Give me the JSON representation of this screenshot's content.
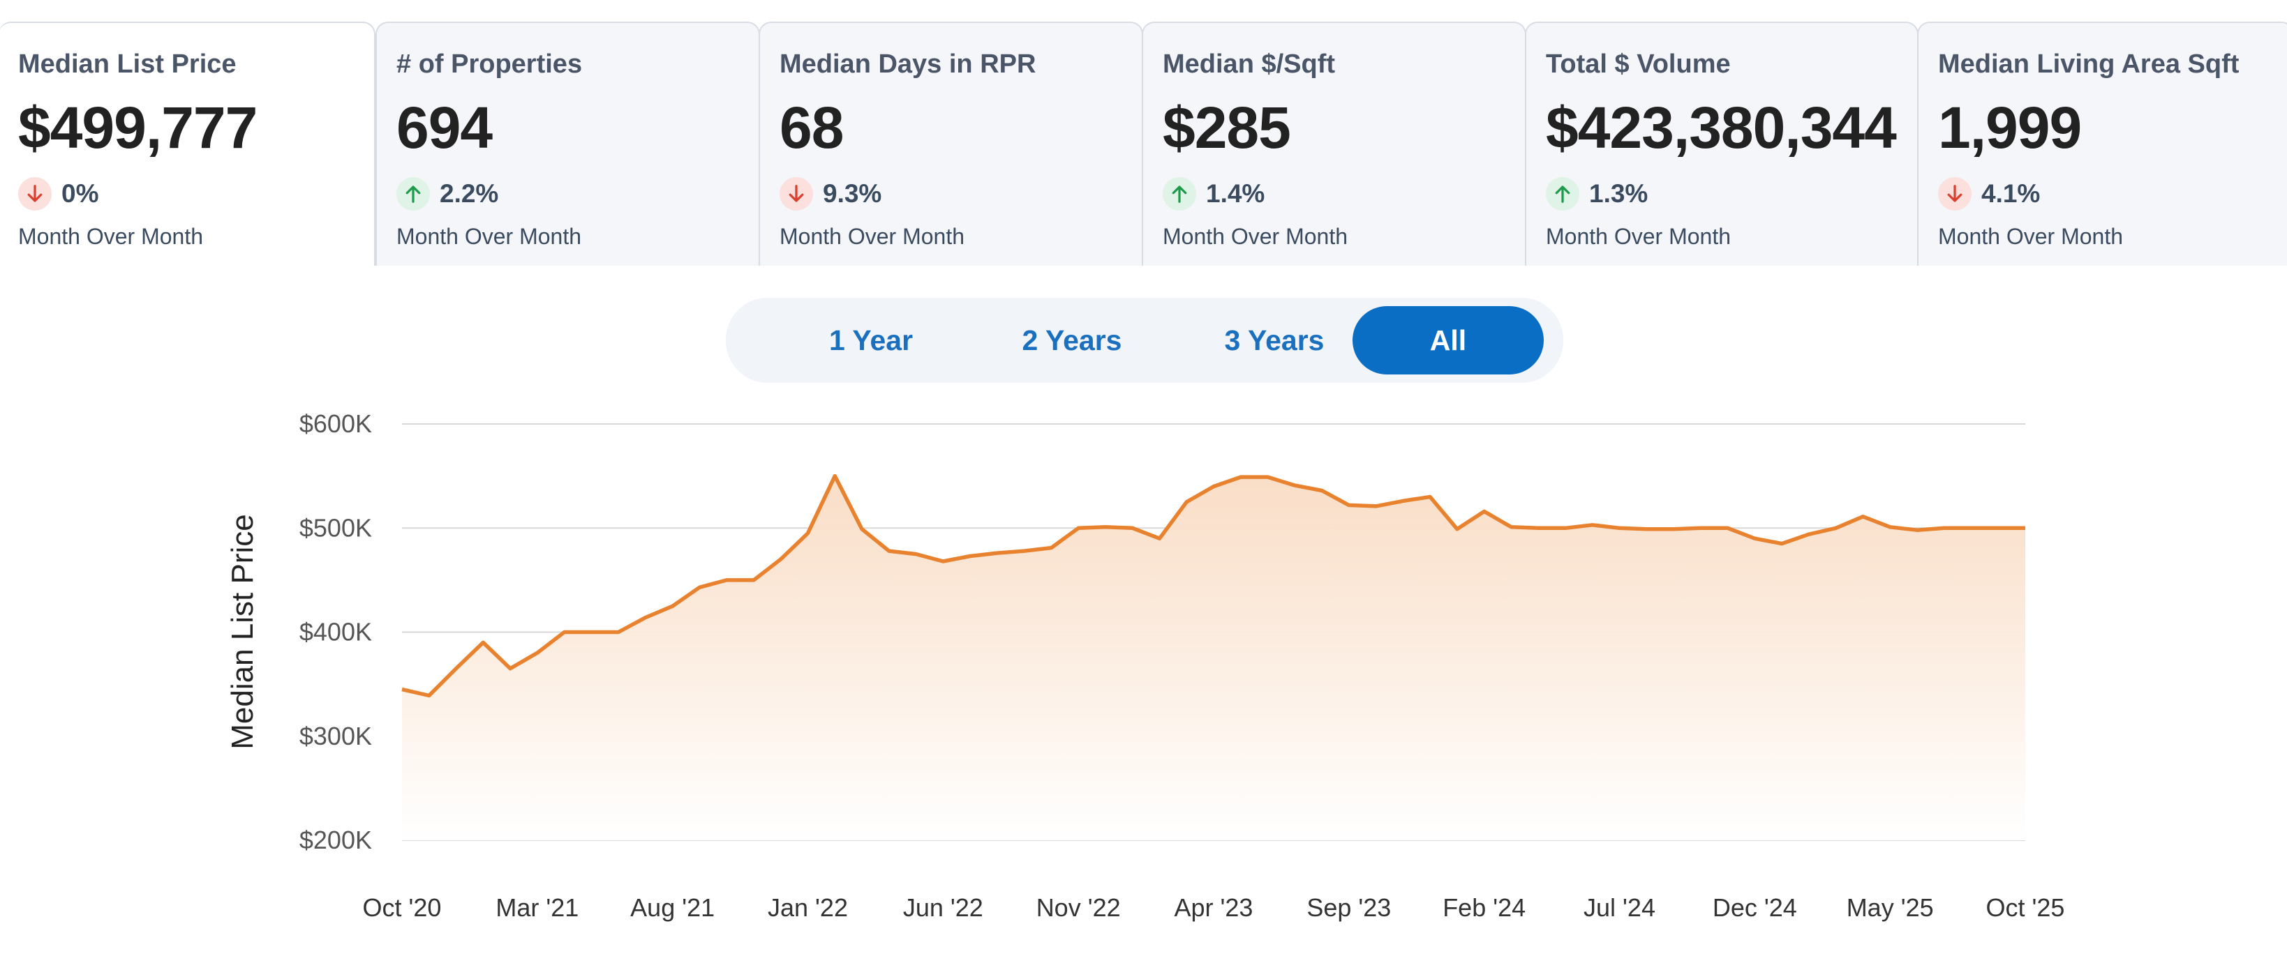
{
  "cards": [
    {
      "label": "Median List Price",
      "value": "$499,777",
      "direction": "down",
      "change": "0%",
      "period": "Month Over Month"
    },
    {
      "label": "# of Properties",
      "value": "694",
      "direction": "up",
      "change": "2.2%",
      "period": "Month Over Month"
    },
    {
      "label": "Median Days in RPR",
      "value": "68",
      "direction": "down",
      "change": "9.3%",
      "period": "Month Over Month"
    },
    {
      "label": "Median $/Sqft",
      "value": "$285",
      "direction": "up",
      "change": "1.4%",
      "period": "Month Over Month"
    },
    {
      "label": "Total $ Volume",
      "value": "$423,380,344",
      "direction": "up",
      "change": "1.3%",
      "period": "Month Over Month"
    },
    {
      "label": "Median Living Area Sqft",
      "value": "1,999",
      "direction": "down",
      "change": "4.1%",
      "period": "Month Over Month"
    }
  ],
  "period_toggle": {
    "options": [
      "1 Year",
      "2 Years",
      "3 Years",
      "All"
    ],
    "selected": "All"
  },
  "colors": {
    "line": "#e8822f",
    "area_top": "#f9dcc4",
    "area_bottom": "#ffffff",
    "grid": "#d9d9d9",
    "accent": "#0a6ec5",
    "down_arrow": "#d9402e",
    "up_arrow": "#1e9a4c"
  },
  "chart_data": {
    "type": "area",
    "ylabel": "Median List Price",
    "ylim": [
      200000,
      600000
    ],
    "yticks": [
      200000,
      300000,
      400000,
      500000,
      600000
    ],
    "ytick_labels": [
      "$200K",
      "$300K",
      "$400K",
      "$500K",
      "$600K"
    ],
    "xtick_labels": [
      "Oct '20",
      "Mar '21",
      "Aug '21",
      "Jan '22",
      "Jun '22",
      "Nov '22",
      "Apr '23",
      "Sep '23",
      "Feb '24",
      "Jul '24",
      "Dec '24",
      "May '25",
      "Oct '25"
    ],
    "grid": true,
    "series": [
      {
        "x": [
          "Oct '20",
          "Nov '20",
          "Dec '20",
          "Jan '21",
          "Feb '21",
          "Mar '21",
          "Apr '21",
          "May '21",
          "Jun '21",
          "Jul '21",
          "Aug '21",
          "Sep '21",
          "Oct '21",
          "Nov '21",
          "Dec '21",
          "Jan '22",
          "Feb '22",
          "Mar '22",
          "Apr '22",
          "May '22",
          "Jun '22",
          "Jul '22",
          "Aug '22",
          "Sep '22",
          "Oct '22",
          "Nov '22",
          "Dec '22",
          "Jan '23",
          "Feb '23",
          "Mar '23",
          "Apr '23",
          "May '23",
          "Jun '23",
          "Jul '23",
          "Aug '23",
          "Sep '23",
          "Oct '23",
          "Nov '23",
          "Dec '23",
          "Jan '24",
          "Feb '24",
          "Mar '24",
          "Apr '24",
          "May '24",
          "Jun '24",
          "Jul '24",
          "Aug '24",
          "Sep '24",
          "Oct '24",
          "Nov '24",
          "Dec '24",
          "Jan '25",
          "Feb '25",
          "Mar '25",
          "Apr '25",
          "May '25",
          "Jun '25",
          "Jul '25",
          "Aug '25",
          "Sep '25",
          "Oct '25"
        ],
        "values": [
          345000,
          339000,
          365000,
          390000,
          365000,
          380000,
          400000,
          400000,
          400000,
          414000,
          425000,
          443000,
          450000,
          450000,
          470000,
          495000,
          550000,
          499000,
          478000,
          475000,
          468000,
          473000,
          476000,
          478000,
          481000,
          500000,
          501000,
          500000,
          490000,
          525000,
          540000,
          549000,
          549000,
          541000,
          536000,
          522000,
          521000,
          526000,
          530000,
          499000,
          516000,
          501000,
          500000,
          500000,
          503000,
          500000,
          499000,
          499000,
          500000,
          500000,
          490000,
          485000,
          494000,
          500000,
          511000,
          501000,
          498000,
          500000,
          500000,
          500000,
          500000
        ]
      }
    ]
  }
}
